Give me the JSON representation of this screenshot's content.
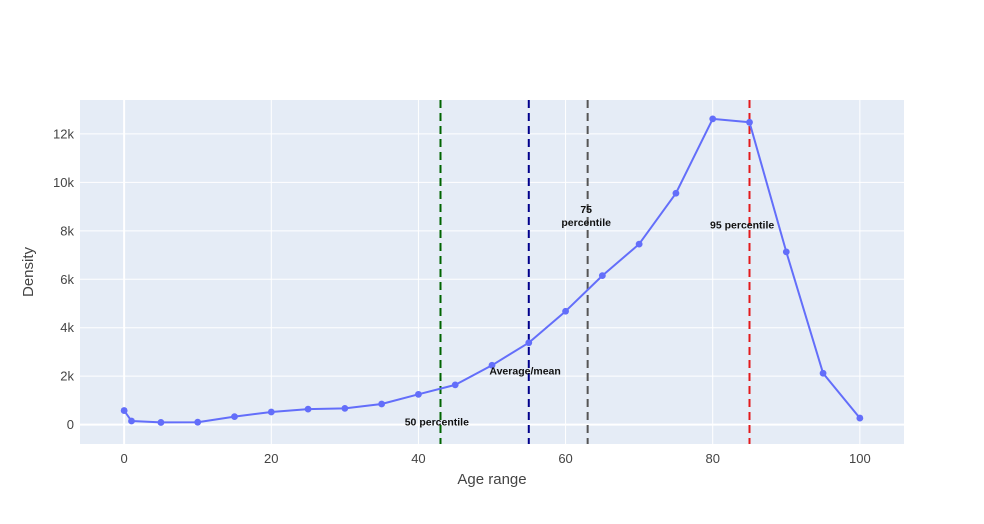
{
  "chart_data": {
    "type": "line",
    "xlabel": "Age range",
    "ylabel": "Density",
    "xlim": [
      -6,
      106
    ],
    "ylim": [
      -800,
      13400
    ],
    "x_ticks": [
      0,
      20,
      40,
      60,
      80,
      100
    ],
    "x_tick_labels": [
      "0",
      "20",
      "40",
      "60",
      "80",
      "100"
    ],
    "y_ticks": [
      0,
      2000,
      4000,
      6000,
      8000,
      10000,
      12000
    ],
    "y_tick_labels": [
      "0",
      "2k",
      "4k",
      "6k",
      "8k",
      "10k",
      "12k"
    ],
    "grid": true,
    "plot_background": "#e5ecf6",
    "series": [
      {
        "color": "#636efa",
        "x": [
          0,
          1,
          5,
          10,
          15,
          20,
          25,
          30,
          35,
          40,
          45,
          50,
          55,
          60,
          65,
          70,
          75,
          80,
          85,
          90,
          95,
          100
        ],
        "values": [
          580,
          150,
          90,
          100,
          330,
          520,
          640,
          670,
          850,
          1250,
          1640,
          2450,
          3380,
          4680,
          6150,
          7450,
          9550,
          12620,
          12480,
          7130,
          2120,
          270
        ]
      }
    ],
    "vlines": [
      {
        "x": 43,
        "color": "#006400",
        "label": "50 percentile",
        "label_x": 42.5,
        "label_y": -30
      },
      {
        "x": 55,
        "color": "#00008b",
        "label": "Average/mean",
        "label_x": 54.5,
        "label_y": 2070
      },
      {
        "x": 63,
        "color": "#555555",
        "label_lines": [
          "75",
          "percentile"
        ],
        "label_x": 62.8,
        "label_y": 8200
      },
      {
        "x": 85,
        "color": "#e31a1c",
        "label": "95 percentile",
        "label_x": 84,
        "label_y": 8100
      }
    ]
  }
}
